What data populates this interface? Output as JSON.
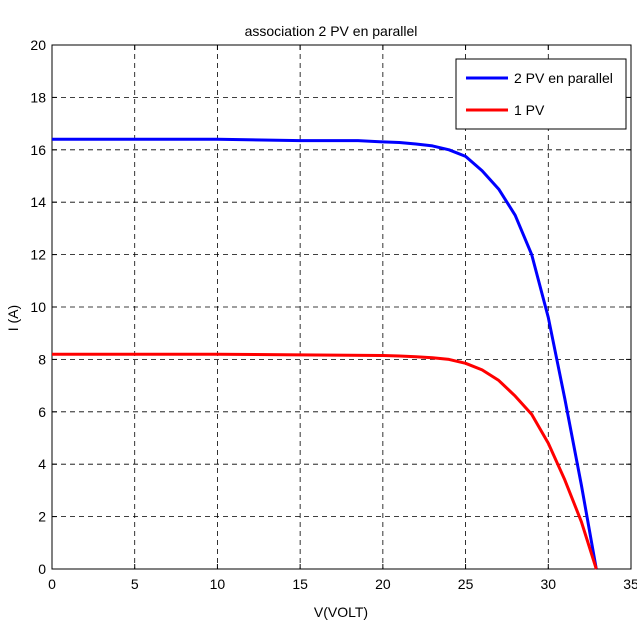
{
  "chart_data": {
    "type": "line",
    "title": "association 2 PV en parallel",
    "xlabel": "V(VOLT)",
    "ylabel": "I (A)",
    "xlim": [
      0,
      35
    ],
    "ylim": [
      0,
      20
    ],
    "xticks": [
      0,
      5,
      10,
      15,
      20,
      25,
      30,
      35
    ],
    "yticks": [
      0,
      2,
      4,
      6,
      8,
      10,
      12,
      14,
      16,
      18,
      20
    ],
    "grid": true,
    "legend_position": "top-right",
    "series": [
      {
        "name": "2 PV en parallel",
        "color": "#0000ff",
        "x": [
          0,
          5,
          10,
          15,
          18.5,
          20,
          21,
          22,
          23,
          24,
          25,
          26,
          27,
          28,
          29,
          30,
          31,
          32,
          32.9
        ],
        "y": [
          16.4,
          16.4,
          16.4,
          16.35,
          16.35,
          16.3,
          16.28,
          16.22,
          16.15,
          16.0,
          15.75,
          15.2,
          14.5,
          13.5,
          12.0,
          9.6,
          6.5,
          3.2,
          0
        ]
      },
      {
        "name": "1 PV",
        "color": "#ff0000",
        "x": [
          0,
          5,
          10,
          15,
          20,
          21,
          22,
          23,
          24,
          25,
          26,
          27,
          28,
          29,
          30,
          31,
          32,
          32.9
        ],
        "y": [
          8.2,
          8.2,
          8.2,
          8.17,
          8.15,
          8.13,
          8.1,
          8.06,
          8.0,
          7.85,
          7.6,
          7.2,
          6.6,
          5.9,
          4.8,
          3.4,
          1.8,
          0
        ]
      }
    ]
  }
}
